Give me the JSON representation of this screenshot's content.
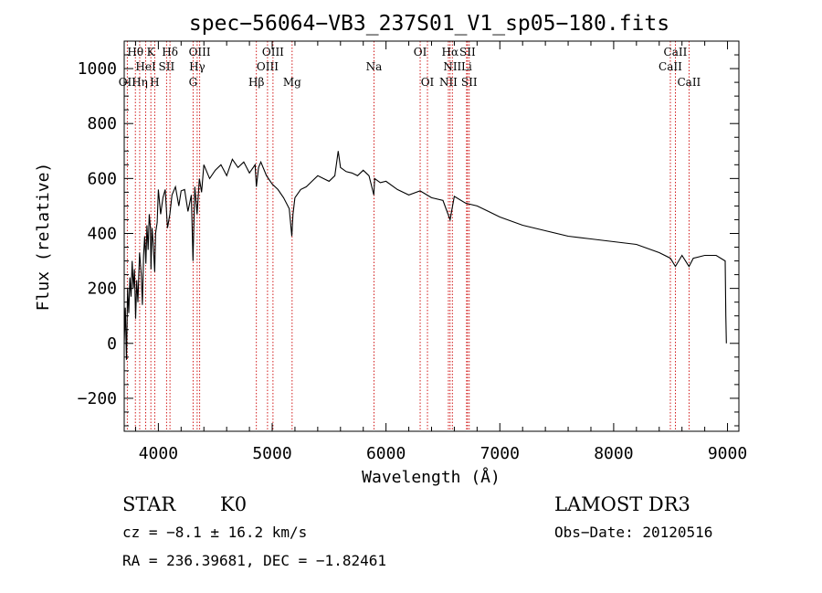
{
  "chart_data": {
    "type": "line",
    "title": "spec−56064−VB3_237S01_V1_sp05−180.fits",
    "xlabel": "Wavelength (Å)",
    "ylabel": "Flux (relative)",
    "xlim": [
      3700,
      9100
    ],
    "ylim": [
      -320,
      1100
    ],
    "xticks": [
      4000,
      5000,
      6000,
      7000,
      8000,
      9000
    ],
    "xticklabels": [
      "4000",
      "5000",
      "6000",
      "7000",
      "8000",
      "9000"
    ],
    "yticks": [
      -200,
      0,
      200,
      400,
      600,
      800,
      1000
    ],
    "yticklabels": [
      "−200",
      "0",
      "200",
      "400",
      "600",
      "800",
      "1000"
    ],
    "grid": false,
    "line_color": "#000000",
    "marker_color": "#cc0000",
    "series": [
      {
        "name": "flux",
        "x": [
          3700,
          3710,
          3720,
          3730,
          3740,
          3750,
          3760,
          3770,
          3780,
          3790,
          3800,
          3810,
          3820,
          3835,
          3850,
          3860,
          3870,
          3880,
          3890,
          3900,
          3910,
          3920,
          3930,
          3935,
          3945,
          3955,
          3968,
          3975,
          3990,
          4000,
          4020,
          4040,
          4060,
          4080,
          4101,
          4120,
          4150,
          4180,
          4200,
          4230,
          4260,
          4290,
          4304,
          4320,
          4340,
          4360,
          4380,
          4400,
          4450,
          4500,
          4550,
          4600,
          4650,
          4700,
          4750,
          4800,
          4850,
          4861,
          4880,
          4900,
          4950,
          5000,
          5050,
          5100,
          5150,
          5172,
          5183,
          5200,
          5250,
          5300,
          5350,
          5400,
          5450,
          5500,
          5550,
          5580,
          5600,
          5650,
          5700,
          5750,
          5800,
          5850,
          5893,
          5900,
          5950,
          6000,
          6100,
          6200,
          6300,
          6400,
          6500,
          6563,
          6600,
          6700,
          6800,
          6900,
          7000,
          7200,
          7400,
          7600,
          7800,
          8000,
          8200,
          8400,
          8498,
          8542,
          8600,
          8662,
          8700,
          8800,
          8900,
          8980,
          8985,
          8990
        ],
        "values": [
          0,
          130,
          -60,
          200,
          110,
          240,
          170,
          300,
          200,
          270,
          90,
          230,
          150,
          330,
          250,
          140,
          320,
          390,
          290,
          430,
          340,
          470,
          420,
          270,
          420,
          360,
          260,
          400,
          440,
          560,
          470,
          530,
          560,
          420,
          470,
          540,
          570,
          500,
          555,
          560,
          480,
          540,
          300,
          570,
          470,
          600,
          550,
          650,
          600,
          630,
          650,
          610,
          670,
          640,
          660,
          620,
          650,
          570,
          640,
          660,
          610,
          580,
          560,
          530,
          490,
          390,
          470,
          530,
          560,
          570,
          590,
          610,
          600,
          590,
          610,
          700,
          640,
          625,
          620,
          610,
          630,
          610,
          540,
          600,
          585,
          590,
          560,
          540,
          555,
          530,
          520,
          450,
          535,
          510,
          500,
          480,
          460,
          430,
          410,
          390,
          380,
          370,
          360,
          330,
          310,
          280,
          320,
          280,
          310,
          320,
          320,
          300,
          100,
          0
        ]
      }
    ],
    "lines": [
      {
        "label": "OII",
        "wl": 3727,
        "row": 3
      },
      {
        "label": "Hθ",
        "wl": 3798,
        "row": 1
      },
      {
        "label": "Hη",
        "wl": 3836,
        "row": 3
      },
      {
        "label": "HeI",
        "wl": 3889,
        "row": 2
      },
      {
        "label": "K",
        "wl": 3934,
        "row": 1
      },
      {
        "label": "H",
        "wl": 3968,
        "row": 3
      },
      {
        "label": "SII",
        "wl": 4072,
        "row": 2
      },
      {
        "label": "Hδ",
        "wl": 4102,
        "row": 1
      },
      {
        "label": "G",
        "wl": 4305,
        "row": 3
      },
      {
        "label": "Hγ",
        "wl": 4341,
        "row": 2
      },
      {
        "label": "OIII",
        "wl": 4363,
        "row": 1
      },
      {
        "label": "Hβ",
        "wl": 4861,
        "row": 3
      },
      {
        "label": "OIII",
        "wl": 4959,
        "row": 2
      },
      {
        "label": "OIII",
        "wl": 5007,
        "row": 1
      },
      {
        "label": "Mg",
        "wl": 5175,
        "row": 3
      },
      {
        "label": "Na",
        "wl": 5894,
        "row": 2
      },
      {
        "label": "OI",
        "wl": 6300,
        "row": 1
      },
      {
        "label": "OI",
        "wl": 6364,
        "row": 3
      },
      {
        "label": "NII",
        "wl": 6548,
        "row": 3
      },
      {
        "label": "Hα",
        "wl": 6563,
        "row": 1
      },
      {
        "label": "NII",
        "wl": 6583,
        "row": 2
      },
      {
        "label": "Li",
        "wl": 6708,
        "row": 2
      },
      {
        "label": "SII",
        "wl": 6716,
        "row": 1
      },
      {
        "label": "SII",
        "wl": 6731,
        "row": 3
      },
      {
        "label": "CaII",
        "wl": 8498,
        "row": 2
      },
      {
        "label": "CaII",
        "wl": 8542,
        "row": 1
      },
      {
        "label": "CaII",
        "wl": 8662,
        "row": 3
      }
    ]
  },
  "info": {
    "class_label": "STAR",
    "subclass_label": "K0",
    "survey_label": "LAMOST DR3",
    "redshift_text": "cz = −8.1 ± 16.2 km/s",
    "obs_date_text": "Obs−Date: 20120516",
    "coords_text": "RA = 236.39681, DEC =  −1.82461"
  }
}
